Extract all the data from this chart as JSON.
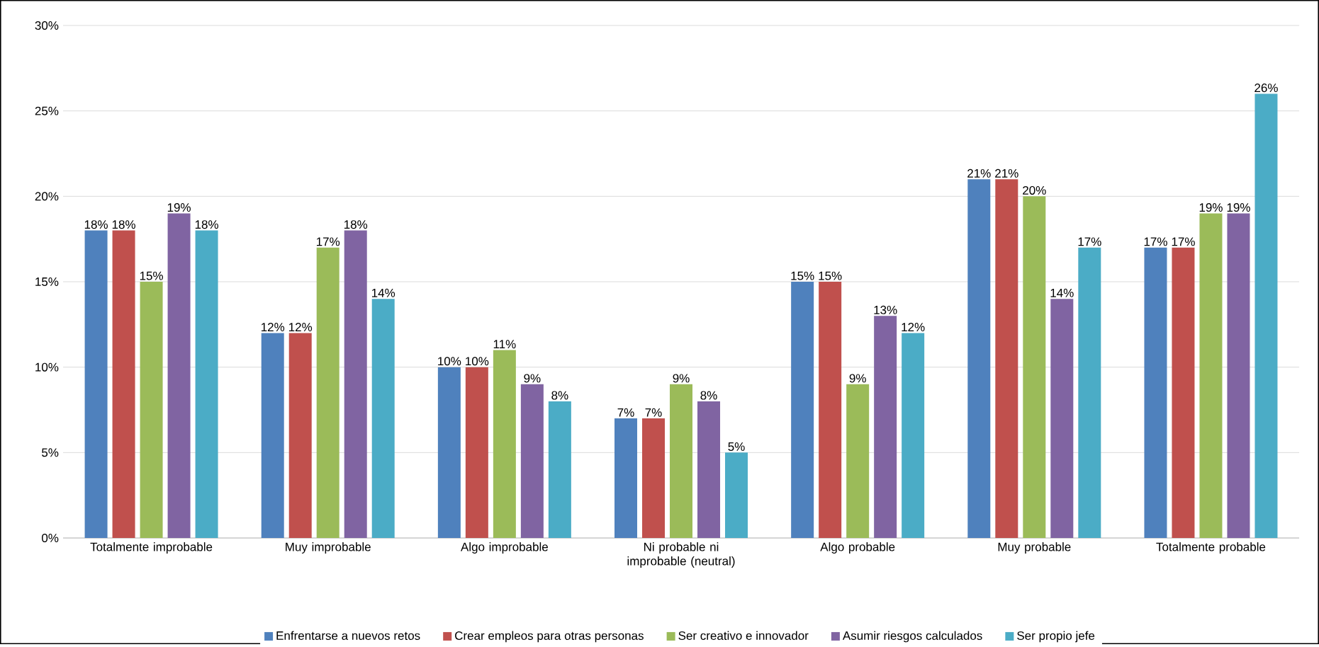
{
  "chart_data": {
    "type": "bar",
    "categories": [
      "Totalmente improbable",
      "Muy improbable",
      "Algo improbable",
      "Ni probable ni improbable (neutral)",
      "Algo probable",
      "Muy probable",
      "Totalmente probable"
    ],
    "series": [
      {
        "name": "Enfrentarse a nuevos retos",
        "color": "#4f81bd",
        "values": [
          18,
          12,
          10,
          7,
          15,
          21,
          17
        ],
        "value_labels": [
          "18%",
          "12%",
          "10%",
          "7%",
          "15%",
          "21%",
          "17%"
        ]
      },
      {
        "name": "Crear empleos para otras personas",
        "color": "#c0504d",
        "values": [
          18,
          12,
          10,
          7,
          15,
          21,
          17
        ],
        "value_labels": [
          "18%",
          "12%",
          "10%",
          "7%",
          "15%",
          "21%",
          "17%"
        ]
      },
      {
        "name": "Ser creativo e innovador",
        "color": "#9bbb59",
        "values": [
          15,
          17,
          11,
          9,
          9,
          20,
          19
        ],
        "value_labels": [
          "15%",
          "17%",
          "11%",
          "9%",
          "9%",
          "20%",
          "19%"
        ]
      },
      {
        "name": "Asumir riesgos calculados",
        "color": "#8064a2",
        "values": [
          19,
          18,
          9,
          8,
          13,
          14,
          19
        ],
        "value_labels": [
          "19%",
          "18%",
          "9%",
          "8%",
          "13%",
          "14%",
          "19%"
        ]
      },
      {
        "name": "Ser propio jefe",
        "color": "#4bacc6",
        "values": [
          18,
          14,
          8,
          5,
          12,
          17,
          26
        ],
        "value_labels": [
          "18%",
          "14%",
          "8%",
          "5%",
          "12%",
          "17%",
          "26%"
        ]
      }
    ],
    "ylim": [
      0,
      30
    ],
    "yticks": [
      {
        "value": 0,
        "label": "0%"
      },
      {
        "value": 5,
        "label": "5%"
      },
      {
        "value": 10,
        "label": "10%"
      },
      {
        "value": 15,
        "label": "15%"
      },
      {
        "value": 20,
        "label": "20%"
      },
      {
        "value": 25,
        "label": "25%"
      },
      {
        "value": 30,
        "label": "30%"
      }
    ],
    "grid": "y",
    "legend": "bottom"
  }
}
